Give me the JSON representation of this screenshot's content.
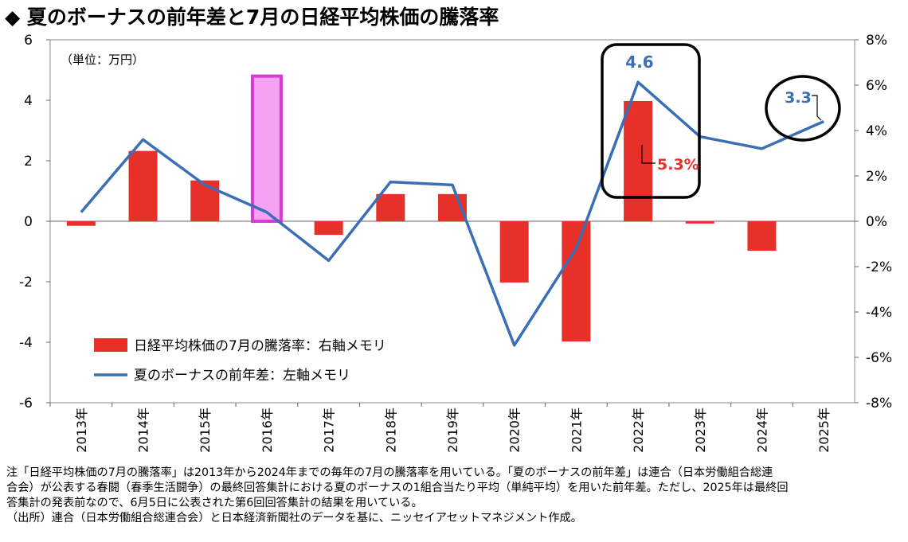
{
  "title": "◆ 夏のボーナスの前年差と7月の日経平均株価の騰落率",
  "chart_data": {
    "type": "bar+line",
    "unit_label": "（単位：万円）",
    "categories": [
      "2013年",
      "2014年",
      "2015年",
      "2016年",
      "2017年",
      "2018年",
      "2019年",
      "2020年",
      "2021年",
      "2022年",
      "2023年",
      "2024年",
      "2025年"
    ],
    "left_axis": {
      "ylim": [
        -6,
        6
      ],
      "ticks": [
        "6",
        "4",
        "2",
        "0",
        "-2",
        "-4",
        "-6"
      ]
    },
    "right_axis": {
      "ylim": [
        -8,
        8
      ],
      "ticks": [
        "8%",
        "6%",
        "4%",
        "2%",
        "0%",
        "-2%",
        "-4%",
        "-6%",
        "-8%"
      ]
    },
    "series": [
      {
        "name": "日経平均株価の7月の騰落率：右軸メモリ",
        "type": "bar",
        "axis": "right",
        "color": "#e8302a",
        "highlight_index": 3,
        "highlight_color": "#f4a2f2",
        "highlight_border": "#d93ad3",
        "values": [
          -0.2,
          3.1,
          1.8,
          6.4,
          -0.6,
          1.2,
          1.2,
          -2.7,
          -5.3,
          5.3,
          -0.1,
          -1.3,
          null
        ]
      },
      {
        "name": "夏のボーナスの前年差：左軸メモリ",
        "type": "line",
        "axis": "left",
        "color": "#3a6fb5",
        "values": [
          0.3,
          2.7,
          1.2,
          0.3,
          -1.3,
          1.3,
          1.2,
          -4.1,
          -0.9,
          4.6,
          2.8,
          2.4,
          3.3
        ]
      }
    ],
    "annotations": [
      {
        "text": "4.6",
        "color": "#3a6fb5"
      },
      {
        "text": "5.3%",
        "color": "#e8302a"
      },
      {
        "text": "3.3",
        "color": "#3a6fb5"
      }
    ]
  },
  "notes": [
    "注「日経平均株価の7月の騰落率」は2013年から2024年までの毎年の7月の騰落率を用いている。「夏のボーナスの前年差」は連合（日本労働組合総連",
    "合会）が公表する春闘（春季生活闘争）の最終回答集計における夏のボーナスの1組合当たり平均（単純平均）を用いた前年差。ただし、2025年は最終回",
    "答集計の発表前なので、6月5日に公表された第6回回答集計の結果を用いている。",
    "（出所）連合（日本労働組合総連合会）と日本経済新聞社のデータを基に、ニッセイアセットマネジメント作成。"
  ]
}
